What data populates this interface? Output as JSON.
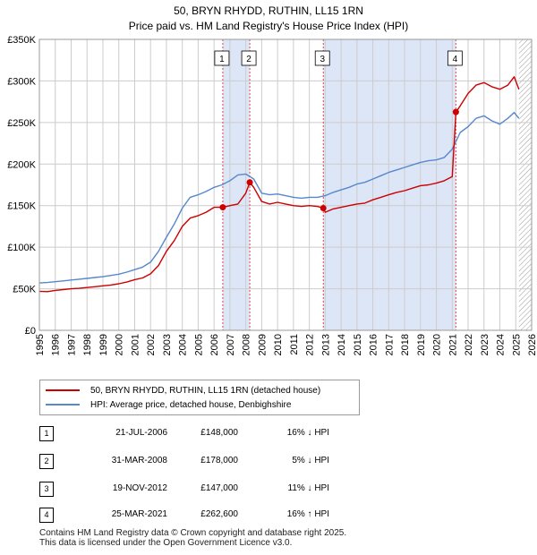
{
  "chart_data": {
    "type": "line",
    "title": "50, BRYN RHYDD, RUTHIN, LL15 1RN",
    "subtitle": "Price paid vs. HM Land Registry's House Price Index (HPI)",
    "xlabel": "",
    "ylabel": "",
    "xlim": [
      1995,
      2026
    ],
    "ylim": [
      0,
      350000
    ],
    "y_ticks": [
      {
        "value": 0,
        "label": "£0"
      },
      {
        "value": 50000,
        "label": "£50K"
      },
      {
        "value": 100000,
        "label": "£100K"
      },
      {
        "value": 150000,
        "label": "£150K"
      },
      {
        "value": 200000,
        "label": "£200K"
      },
      {
        "value": 250000,
        "label": "£250K"
      },
      {
        "value": 300000,
        "label": "£300K"
      },
      {
        "value": 350000,
        "label": "£350K"
      }
    ],
    "x_ticks": [
      "1995",
      "1996",
      "1997",
      "1998",
      "1999",
      "2000",
      "2001",
      "2002",
      "2003",
      "2004",
      "2005",
      "2006",
      "2007",
      "2008",
      "2009",
      "2010",
      "2011",
      "2012",
      "2013",
      "2014",
      "2015",
      "2016",
      "2017",
      "2018",
      "2019",
      "2020",
      "2021",
      "2022",
      "2023",
      "2024",
      "2025",
      "2026"
    ],
    "grid": true,
    "series": [
      {
        "name": "50, BRYN RHYDD, RUTHIN, LL15 1RN (detached house)",
        "color": "#cc0000",
        "x": [
          1995.0,
          1995.5,
          1996.0,
          1996.5,
          1997.0,
          1997.5,
          1998.0,
          1998.5,
          1999.0,
          1999.5,
          2000.0,
          2000.5,
          2001.0,
          2001.5,
          2002.0,
          2002.5,
          2003.0,
          2003.5,
          2004.0,
          2004.5,
          2005.0,
          2005.5,
          2006.0,
          2006.55,
          2007.0,
          2007.5,
          2008.0,
          2008.25,
          2008.5,
          2009.0,
          2009.5,
          2010.0,
          2010.5,
          2011.0,
          2011.5,
          2012.0,
          2012.5,
          2012.88,
          2013.0,
          2013.5,
          2014.0,
          2014.5,
          2015.0,
          2015.5,
          2016.0,
          2016.5,
          2017.0,
          2017.5,
          2018.0,
          2018.5,
          2019.0,
          2019.5,
          2020.0,
          2020.5,
          2021.0,
          2021.23,
          2021.5,
          2022.0,
          2022.5,
          2023.0,
          2023.5,
          2024.0,
          2024.5,
          2024.9,
          2025.2
        ],
        "values": [
          47000,
          46500,
          48000,
          49000,
          50000,
          50500,
          51500,
          52500,
          53500,
          54500,
          56000,
          58000,
          61000,
          63000,
          68000,
          78000,
          95000,
          108000,
          125000,
          135000,
          138000,
          142000,
          148000,
          148000,
          150000,
          152000,
          165000,
          178000,
          172000,
          155000,
          152000,
          154000,
          152000,
          150000,
          149000,
          150000,
          149000,
          147000,
          142000,
          146000,
          148000,
          150000,
          152000,
          153000,
          157000,
          160000,
          163000,
          166000,
          168000,
          171000,
          174000,
          175000,
          177000,
          180000,
          185000,
          262600,
          270000,
          285000,
          295000,
          298000,
          293000,
          290000,
          295000,
          305000,
          290000
        ]
      },
      {
        "name": "HPI: Average price, detached house, Denbighshire",
        "color": "#5588cc",
        "x": [
          1995.0,
          1995.5,
          1996.0,
          1996.5,
          1997.0,
          1997.5,
          1998.0,
          1998.5,
          1999.0,
          1999.5,
          2000.0,
          2000.5,
          2001.0,
          2001.5,
          2002.0,
          2002.5,
          2003.0,
          2003.5,
          2004.0,
          2004.5,
          2005.0,
          2005.5,
          2006.0,
          2006.5,
          2007.0,
          2007.5,
          2008.0,
          2008.5,
          2009.0,
          2009.5,
          2010.0,
          2010.5,
          2011.0,
          2011.5,
          2012.0,
          2012.5,
          2013.0,
          2013.5,
          2014.0,
          2014.5,
          2015.0,
          2015.5,
          2016.0,
          2016.5,
          2017.0,
          2017.5,
          2018.0,
          2018.5,
          2019.0,
          2019.5,
          2020.0,
          2020.5,
          2021.0,
          2021.5,
          2022.0,
          2022.5,
          2023.0,
          2023.5,
          2024.0,
          2024.5,
          2024.9,
          2025.2
        ],
        "values": [
          57000,
          57500,
          58500,
          59500,
          60500,
          61500,
          62500,
          63500,
          64500,
          66000,
          67500,
          70000,
          73000,
          76000,
          82000,
          95000,
          112000,
          128000,
          147000,
          160000,
          163000,
          167000,
          172000,
          175000,
          180000,
          187000,
          188000,
          182000,
          165000,
          163000,
          164000,
          162000,
          160000,
          159000,
          160000,
          160000,
          162000,
          166000,
          169000,
          172000,
          176000,
          178000,
          182000,
          186000,
          190000,
          193000,
          196000,
          199000,
          202000,
          204000,
          205000,
          208000,
          218000,
          238000,
          245000,
          255000,
          258000,
          252000,
          248000,
          255000,
          262000,
          255000
        ]
      }
    ],
    "sales": [
      {
        "id": "1",
        "x": 2006.55,
        "value": 148000,
        "date": "21-JUL-2006",
        "price": "£148,000",
        "hpi": "16% ↓ HPI"
      },
      {
        "id": "2",
        "x": 2008.25,
        "value": 178000,
        "date": "31-MAR-2008",
        "price": "£178,000",
        "hpi": "5% ↓ HPI"
      },
      {
        "id": "3",
        "x": 2012.88,
        "value": 147000,
        "date": "19-NOV-2012",
        "price": "£147,000",
        "hpi": "11% ↓ HPI"
      },
      {
        "id": "4",
        "x": 2021.23,
        "value": 262600,
        "date": "25-MAR-2021",
        "price": "£262,600",
        "hpi": "16% ↑ HPI"
      }
    ],
    "shaded_spans": [
      [
        2006.55,
        2008.25
      ],
      [
        2012.88,
        2021.23
      ]
    ],
    "projection_start": 2025.2,
    "legend_position": "below"
  },
  "colors": {
    "sale_line": "#cc0000",
    "hpi_line": "#5588cc",
    "shade": "#dde6f7",
    "grid": "#cccccc",
    "vline": "#dd4444"
  },
  "header": {
    "title": "50, BRYN RHYDD, RUTHIN, LL15 1RN",
    "subtitle": "Price paid vs. HM Land Registry's House Price Index (HPI)"
  },
  "legend": {
    "sale_label": "50, BRYN RHYDD, RUTHIN, LL15 1RN (detached house)",
    "hpi_label": "HPI: Average price, detached house, Denbighshire"
  },
  "table": [
    {
      "id": "1",
      "date": "21-JUL-2006",
      "price": "£148,000",
      "hpi": "16% ↓ HPI"
    },
    {
      "id": "2",
      "date": "31-MAR-2008",
      "price": "£178,000",
      "hpi": "5% ↓ HPI"
    },
    {
      "id": "3",
      "date": "19-NOV-2012",
      "price": "£147,000",
      "hpi": "11% ↓ HPI"
    },
    {
      "id": "4",
      "date": "25-MAR-2021",
      "price": "£262,600",
      "hpi": "16% ↑ HPI"
    }
  ],
  "footer": {
    "line1": "Contains HM Land Registry data © Crown copyright and database right 2025.",
    "line2": "This data is licensed under the Open Government Licence v3.0."
  }
}
